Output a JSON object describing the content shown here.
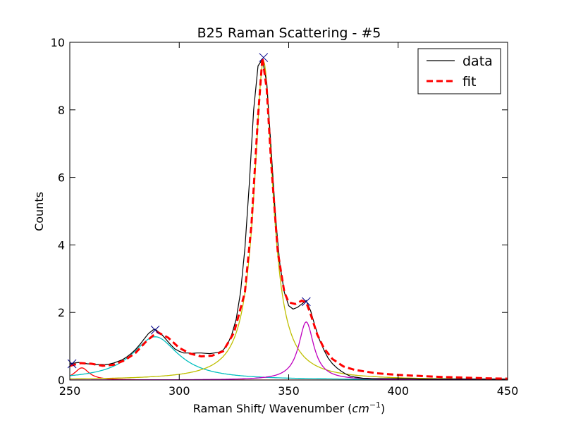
{
  "chart_data": {
    "type": "line",
    "title": "B25 Raman Scattering - #5",
    "xlabel": "Raman Shift/ Wavenumber (",
    "xlabel_unit": "cm",
    "xlabel_exp": "−1",
    "xlabel_close": ")",
    "ylabel": "Counts",
    "xlim": [
      250,
      450
    ],
    "ylim": [
      0,
      10
    ],
    "xticks": [
      250,
      300,
      350,
      400,
      450
    ],
    "yticks": [
      0,
      2,
      4,
      6,
      8,
      10
    ],
    "grid": false,
    "legend_position": "top-right",
    "legend": [
      {
        "label": "data",
        "color": "#000000",
        "style": "solid"
      },
      {
        "label": "fit",
        "color": "#ff0000",
        "style": "dashed"
      }
    ],
    "series": [
      {
        "name": "data",
        "color": "#000000",
        "x": [
          250,
          252,
          254,
          256,
          258,
          260,
          262,
          264,
          266,
          268,
          270,
          272,
          274,
          276,
          278,
          280,
          282,
          284,
          286,
          288,
          289,
          290,
          292,
          294,
          296,
          298,
          300,
          302,
          304,
          306,
          308,
          310,
          312,
          314,
          316,
          318,
          320,
          322,
          324,
          326,
          328,
          330,
          332,
          334,
          336,
          338,
          340,
          342,
          344,
          346,
          348,
          350,
          352,
          354,
          356,
          358,
          360,
          362,
          364,
          366,
          368,
          370,
          372,
          374,
          376,
          378,
          380,
          382,
          384,
          386,
          388,
          390,
          395,
          400,
          405,
          410,
          415,
          420,
          425,
          430,
          435,
          440,
          445,
          450
        ],
        "y": [
          0.48,
          0.5,
          0.52,
          0.5,
          0.48,
          0.47,
          0.45,
          0.46,
          0.45,
          0.47,
          0.5,
          0.55,
          0.6,
          0.68,
          0.78,
          0.9,
          1.05,
          1.22,
          1.38,
          1.48,
          1.5,
          1.45,
          1.35,
          1.2,
          1.05,
          0.92,
          0.85,
          0.8,
          0.8,
          0.79,
          0.8,
          0.8,
          0.79,
          0.78,
          0.8,
          0.82,
          0.88,
          1.05,
          1.35,
          1.8,
          2.6,
          3.9,
          5.8,
          8.0,
          9.3,
          9.5,
          8.8,
          6.8,
          4.8,
          3.4,
          2.6,
          2.2,
          2.1,
          2.15,
          2.25,
          2.35,
          2.05,
          1.6,
          1.2,
          0.9,
          0.65,
          0.48,
          0.36,
          0.26,
          0.18,
          0.12,
          0.09,
          0.07,
          0.05,
          0.05,
          0.04,
          0.04,
          0.04,
          0.04,
          0.04,
          0.03,
          0.03,
          0.03,
          0.03,
          0.03,
          0.03,
          0.03,
          0.03,
          0.03
        ]
      },
      {
        "name": "fit",
        "color": "#ff0000",
        "style": "dashed",
        "x": [
          250,
          255,
          260,
          265,
          270,
          275,
          280,
          285,
          290,
          295,
          300,
          305,
          310,
          315,
          320,
          325,
          330,
          333,
          336,
          338,
          340,
          342,
          345,
          348,
          350,
          353,
          356,
          358,
          360,
          363,
          366,
          370,
          375,
          380,
          390,
          400,
          410,
          420,
          430,
          440,
          450
        ],
        "y": [
          0.42,
          0.5,
          0.48,
          0.42,
          0.45,
          0.58,
          0.8,
          1.15,
          1.42,
          1.25,
          0.95,
          0.78,
          0.7,
          0.72,
          0.85,
          1.4,
          2.6,
          4.6,
          7.8,
          9.55,
          8.6,
          6.4,
          3.8,
          2.6,
          2.3,
          2.25,
          2.35,
          2.3,
          1.95,
          1.35,
          0.95,
          0.62,
          0.4,
          0.3,
          0.2,
          0.15,
          0.12,
          0.09,
          0.07,
          0.05,
          0.04
        ]
      }
    ],
    "components": [
      {
        "type": "lorentzian",
        "center": 255.5,
        "amplitude": 0.36,
        "hwhm": 4,
        "color": "#ff0000"
      },
      {
        "type": "lorentzian",
        "center": 289,
        "amplitude": 1.28,
        "hwhm": 13,
        "color": "#00bfbf"
      },
      {
        "type": "lorentzian",
        "center": 338.5,
        "amplitude": 9.45,
        "hwhm": 5.2,
        "color": "#bfbf00"
      },
      {
        "type": "lorentzian",
        "center": 358,
        "amplitude": 1.72,
        "hwhm": 4.2,
        "color": "#bf00bf"
      }
    ],
    "peak_markers": {
      "color": "#00008b",
      "x": [
        251,
        289,
        338.5,
        358
      ],
      "y": [
        0.48,
        1.48,
        9.55,
        2.32
      ]
    }
  }
}
